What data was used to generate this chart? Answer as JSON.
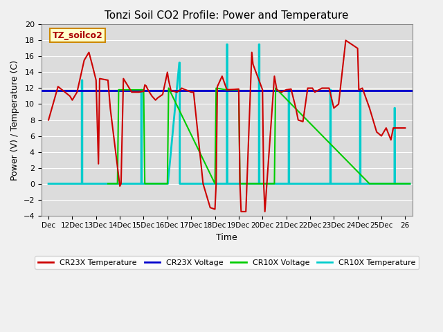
{
  "title": "Tonzi Soil CO2 Profile: Power and Temperature",
  "xlabel": "Time",
  "ylabel": "Power (V) / Temperature (C)",
  "ylim": [
    -4,
    20
  ],
  "yticks": [
    -4,
    -2,
    0,
    2,
    4,
    6,
    8,
    10,
    12,
    14,
    16,
    18,
    20
  ],
  "background_color": "#dcdcdc",
  "plot_bg_color": "#dcdcdc",
  "annotation_text": "TZ_soilco2",
  "annotation_box_color": "#ffffcc",
  "annotation_border_color": "#cc8800",
  "cr23x_temp_color": "#cc0000",
  "cr23x_volt_color": "#0000cc",
  "cr10x_volt_color": "#00cc00",
  "cr10x_temp_color": "#00cccc",
  "cr23x_volt_value": 11.65,
  "xtick_labels": [
    "Dec",
    "12Dec",
    "13Dec",
    "14Dec",
    "15Dec",
    "16Dec",
    "17Dec",
    "18Dec",
    "19Dec",
    "20Dec",
    "21Dec",
    "22Dec",
    "23Dec",
    "24Dec",
    "25Dec",
    "26"
  ],
  "xtick_positions": [
    0,
    1,
    2,
    3,
    4,
    5,
    6,
    7,
    8,
    9,
    10,
    11,
    12,
    13,
    14,
    15
  ],
  "cr23x_temp_x": [
    0,
    0.4,
    0.9,
    1.0,
    1.2,
    1.5,
    1.7,
    1.85,
    2.0,
    2.1,
    2.15,
    2.5,
    2.6,
    3.0,
    3.05,
    3.15,
    3.5,
    3.8,
    4.0,
    4.05,
    4.1,
    4.2,
    4.35,
    4.5,
    4.6,
    4.8,
    5.0,
    5.05,
    5.15,
    5.4,
    5.55,
    5.6,
    6.0,
    6.1,
    6.5,
    6.8,
    7.0,
    7.05,
    7.1,
    7.3,
    7.5,
    8.0,
    8.05,
    8.1,
    8.3,
    8.55,
    8.6,
    9.0,
    9.05,
    9.1,
    9.5,
    9.6,
    9.8,
    10.0,
    10.2,
    10.4,
    10.5,
    10.7,
    10.9,
    11.0,
    11.1,
    11.2,
    11.5,
    11.75,
    11.8,
    12.0,
    12.2,
    12.5,
    13.0,
    13.05,
    13.2,
    13.5,
    13.8,
    14.0,
    14.2,
    14.4,
    14.5,
    15.0
  ],
  "cr23x_temp_y": [
    8,
    12.2,
    11.0,
    10.5,
    11.5,
    15.5,
    16.5,
    14.8,
    13.0,
    2.5,
    13.2,
    13.0,
    9.4,
    -0.3,
    0.0,
    13.2,
    11.5,
    11.5,
    11.6,
    12.4,
    12.3,
    11.7,
    11.0,
    10.5,
    10.8,
    11.2,
    14.0,
    13.0,
    11.7,
    11.5,
    11.8,
    12.0,
    11.5,
    11.5,
    0.0,
    -3.0,
    -3.2,
    0.0,
    12.2,
    13.5,
    11.8,
    11.9,
    0.0,
    -3.5,
    -3.5,
    16.5,
    15.0,
    11.8,
    0.0,
    -3.5,
    13.5,
    11.8,
    11.5,
    11.8,
    11.9,
    9.5,
    8.0,
    7.8,
    12.0,
    12.0,
    12.0,
    11.5,
    12.0,
    12.0,
    12.0,
    9.5,
    10.0,
    18.0,
    17.0,
    11.8,
    12.0,
    9.5,
    6.5,
    6.0,
    7.0,
    5.5,
    7.0,
    7.0
  ],
  "cr10x_volt_x": [
    2.5,
    2.9,
    2.95,
    3.5,
    3.85,
    4.0,
    4.05,
    5.0,
    5.05,
    7.0,
    7.05,
    7.5,
    7.85,
    8.0,
    8.05,
    9.5,
    9.55,
    13.5,
    13.55,
    15.2
  ],
  "cr10x_volt_y": [
    0,
    0,
    11.8,
    11.8,
    11.8,
    11.8,
    0,
    0,
    12.0,
    0,
    12.0,
    11.8,
    11.8,
    11.8,
    0,
    0,
    12.0,
    0,
    0,
    0
  ],
  "cr10x_temp_x": [
    0.0,
    1.4,
    1.4,
    1.42,
    1.42,
    2.5,
    2.5,
    2.52,
    2.52,
    3.9,
    3.9,
    3.92,
    3.92,
    5.0,
    5.0,
    5.02,
    5.02,
    5.5,
    5.5,
    5.52,
    5.52,
    7.5,
    7.5,
    7.52,
    7.52,
    8.85,
    8.85,
    8.87,
    8.87,
    10.1,
    10.1,
    10.12,
    10.12,
    11.85,
    11.85,
    11.87,
    11.87,
    13.1,
    13.1,
    13.12,
    13.12,
    14.55,
    14.55,
    14.57,
    14.57,
    15.2
  ],
  "cr10x_temp_y": [
    0,
    0,
    13.0,
    13.0,
    0,
    0,
    0,
    0,
    0,
    0,
    11.8,
    11.8,
    0,
    0,
    0,
    0,
    0,
    15.2,
    15.2,
    15.2,
    0,
    0,
    17.5,
    17.5,
    0,
    0,
    17.5,
    17.5,
    0,
    0,
    11.8,
    11.8,
    0,
    0,
    11.8,
    11.8,
    0,
    0,
    11.8,
    11.8,
    0,
    0,
    9.5,
    9.5,
    0,
    0
  ]
}
